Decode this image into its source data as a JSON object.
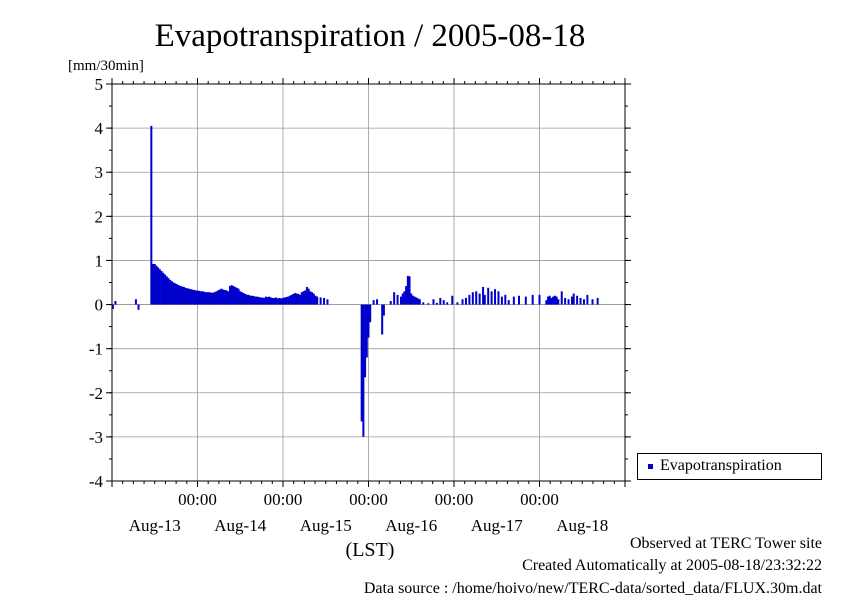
{
  "title": "Evapotranspiration / 2005-08-18",
  "unit_label": "[mm/30min]",
  "footer": {
    "line1": "Observed at TERC Tower site",
    "line2": "Created Automatically at 2005-08-18/23:32:22",
    "line3": "Data source : /home/hoivo/new/TERC-data/sorted_data/FLUX.30m.dat"
  },
  "legend": {
    "label": "Evapotranspiration",
    "color": "#0000cc"
  },
  "chart_data": {
    "type": "bar",
    "title": "Evapotranspiration / 2005-08-18",
    "ylabel": "[mm/30min]",
    "xlabel": "(LST)",
    "ylim": [
      -4,
      5
    ],
    "yticks": [
      "5",
      "4",
      "3",
      "2",
      "1",
      "0",
      "-1",
      "-2",
      "-3",
      "-4"
    ],
    "x_time_labels": [
      "00:00",
      "00:00",
      "00:00",
      "00:00",
      "00:00"
    ],
    "x_date_labels": [
      "Aug-13",
      "Aug-14",
      "Aug-15",
      "Aug-16",
      "Aug-17",
      "Aug-18"
    ],
    "grid": true,
    "legend_position": "right",
    "x_unit": "days since 2005-08-12 00:00",
    "series": [
      {
        "name": "Evapotranspiration",
        "color": "#0000cc",
        "points": [
          [
            1.01,
            -0.1
          ],
          [
            1.04,
            0.08
          ],
          [
            1.28,
            0.12
          ],
          [
            1.31,
            -0.12
          ],
          [
            1.46,
            4.05
          ],
          [
            1.48,
            0.92
          ],
          [
            1.5,
            0.92
          ],
          [
            1.52,
            0.88
          ],
          [
            1.54,
            0.84
          ],
          [
            1.56,
            0.8
          ],
          [
            1.58,
            0.76
          ],
          [
            1.6,
            0.72
          ],
          [
            1.62,
            0.68
          ],
          [
            1.64,
            0.64
          ],
          [
            1.66,
            0.6
          ],
          [
            1.68,
            0.56
          ],
          [
            1.7,
            0.53
          ],
          [
            1.72,
            0.5
          ],
          [
            1.74,
            0.48
          ],
          [
            1.76,
            0.46
          ],
          [
            1.78,
            0.44
          ],
          [
            1.8,
            0.42
          ],
          [
            1.82,
            0.41
          ],
          [
            1.84,
            0.4
          ],
          [
            1.86,
            0.38
          ],
          [
            1.88,
            0.37
          ],
          [
            1.9,
            0.36
          ],
          [
            1.92,
            0.35
          ],
          [
            1.94,
            0.34
          ],
          [
            1.96,
            0.33
          ],
          [
            1.98,
            0.32
          ],
          [
            2.0,
            0.32
          ],
          [
            2.02,
            0.31
          ],
          [
            2.04,
            0.3
          ],
          [
            2.06,
            0.3
          ],
          [
            2.08,
            0.29
          ],
          [
            2.1,
            0.28
          ],
          [
            2.12,
            0.28
          ],
          [
            2.14,
            0.28
          ],
          [
            2.16,
            0.27
          ],
          [
            2.18,
            0.27
          ],
          [
            2.2,
            0.28
          ],
          [
            2.22,
            0.3
          ],
          [
            2.24,
            0.32
          ],
          [
            2.26,
            0.34
          ],
          [
            2.28,
            0.36
          ],
          [
            2.3,
            0.34
          ],
          [
            2.32,
            0.33
          ],
          [
            2.34,
            0.32
          ],
          [
            2.36,
            0.3
          ],
          [
            2.38,
            0.42
          ],
          [
            2.4,
            0.44
          ],
          [
            2.42,
            0.42
          ],
          [
            2.44,
            0.4
          ],
          [
            2.46,
            0.38
          ],
          [
            2.48,
            0.36
          ],
          [
            2.5,
            0.3
          ],
          [
            2.52,
            0.28
          ],
          [
            2.54,
            0.26
          ],
          [
            2.56,
            0.24
          ],
          [
            2.58,
            0.22
          ],
          [
            2.6,
            0.22
          ],
          [
            2.62,
            0.2
          ],
          [
            2.64,
            0.2
          ],
          [
            2.66,
            0.19
          ],
          [
            2.68,
            0.18
          ],
          [
            2.7,
            0.18
          ],
          [
            2.72,
            0.17
          ],
          [
            2.74,
            0.16
          ],
          [
            2.76,
            0.16
          ],
          [
            2.78,
            0.15
          ],
          [
            2.8,
            0.18
          ],
          [
            2.82,
            0.17
          ],
          [
            2.84,
            0.18
          ],
          [
            2.86,
            0.16
          ],
          [
            2.88,
            0.15
          ],
          [
            2.9,
            0.15
          ],
          [
            2.92,
            0.16
          ],
          [
            2.94,
            0.14
          ],
          [
            2.96,
            0.15
          ],
          [
            2.98,
            0.14
          ],
          [
            3.0,
            0.15
          ],
          [
            3.02,
            0.16
          ],
          [
            3.04,
            0.17
          ],
          [
            3.06,
            0.18
          ],
          [
            3.08,
            0.2
          ],
          [
            3.1,
            0.22
          ],
          [
            3.12,
            0.24
          ],
          [
            3.14,
            0.26
          ],
          [
            3.16,
            0.25
          ],
          [
            3.18,
            0.24
          ],
          [
            3.2,
            0.22
          ],
          [
            3.22,
            0.28
          ],
          [
            3.24,
            0.3
          ],
          [
            3.26,
            0.32
          ],
          [
            3.28,
            0.4
          ],
          [
            3.3,
            0.36
          ],
          [
            3.32,
            0.3
          ],
          [
            3.34,
            0.28
          ],
          [
            3.36,
            0.25
          ],
          [
            3.38,
            0.2
          ],
          [
            3.4,
            0.18
          ],
          [
            3.44,
            0.16
          ],
          [
            3.48,
            0.15
          ],
          [
            3.52,
            0.12
          ],
          [
            3.92,
            -2.65
          ],
          [
            3.94,
            -3.0
          ],
          [
            3.96,
            -1.65
          ],
          [
            3.98,
            -1.2
          ],
          [
            4.0,
            -0.75
          ],
          [
            4.02,
            -0.4
          ],
          [
            4.06,
            0.1
          ],
          [
            4.1,
            0.12
          ],
          [
            4.16,
            -0.68
          ],
          [
            4.18,
            -0.25
          ],
          [
            4.26,
            0.08
          ],
          [
            4.3,
            0.28
          ],
          [
            4.34,
            0.22
          ],
          [
            4.38,
            0.18
          ],
          [
            4.4,
            0.25
          ],
          [
            4.42,
            0.3
          ],
          [
            4.44,
            0.42
          ],
          [
            4.46,
            0.65
          ],
          [
            4.48,
            0.64
          ],
          [
            4.5,
            0.25
          ],
          [
            4.52,
            0.2
          ],
          [
            4.54,
            0.18
          ],
          [
            4.56,
            0.16
          ],
          [
            4.58,
            0.14
          ],
          [
            4.6,
            0.12
          ],
          [
            4.64,
            0.05
          ],
          [
            4.7,
            0.03
          ],
          [
            4.76,
            0.12
          ],
          [
            4.8,
            0.04
          ],
          [
            4.84,
            0.15
          ],
          [
            4.88,
            0.1
          ],
          [
            4.92,
            0.05
          ],
          [
            4.98,
            0.2
          ],
          [
            5.04,
            0.05
          ],
          [
            5.1,
            0.12
          ],
          [
            5.14,
            0.15
          ],
          [
            5.18,
            0.22
          ],
          [
            5.22,
            0.28
          ],
          [
            5.26,
            0.3
          ],
          [
            5.3,
            0.25
          ],
          [
            5.34,
            0.4
          ],
          [
            5.36,
            0.22
          ],
          [
            5.4,
            0.38
          ],
          [
            5.44,
            0.3
          ],
          [
            5.48,
            0.35
          ],
          [
            5.52,
            0.3
          ],
          [
            5.56,
            0.18
          ],
          [
            5.6,
            0.22
          ],
          [
            5.64,
            0.1
          ],
          [
            5.7,
            0.18
          ],
          [
            5.76,
            0.2
          ],
          [
            5.84,
            0.18
          ],
          [
            5.92,
            0.22
          ],
          [
            6.0,
            0.22
          ],
          [
            6.08,
            0.1
          ],
          [
            6.1,
            0.18
          ],
          [
            6.12,
            0.2
          ],
          [
            6.14,
            0.15
          ],
          [
            6.16,
            0.18
          ],
          [
            6.18,
            0.2
          ],
          [
            6.2,
            0.18
          ],
          [
            6.22,
            0.12
          ],
          [
            6.26,
            0.3
          ],
          [
            6.3,
            0.15
          ],
          [
            6.34,
            0.12
          ],
          [
            6.38,
            0.18
          ],
          [
            6.4,
            0.25
          ],
          [
            6.44,
            0.2
          ],
          [
            6.48,
            0.15
          ],
          [
            6.52,
            0.12
          ],
          [
            6.56,
            0.22
          ],
          [
            6.62,
            0.12
          ],
          [
            6.68,
            0.15
          ]
        ]
      }
    ]
  }
}
